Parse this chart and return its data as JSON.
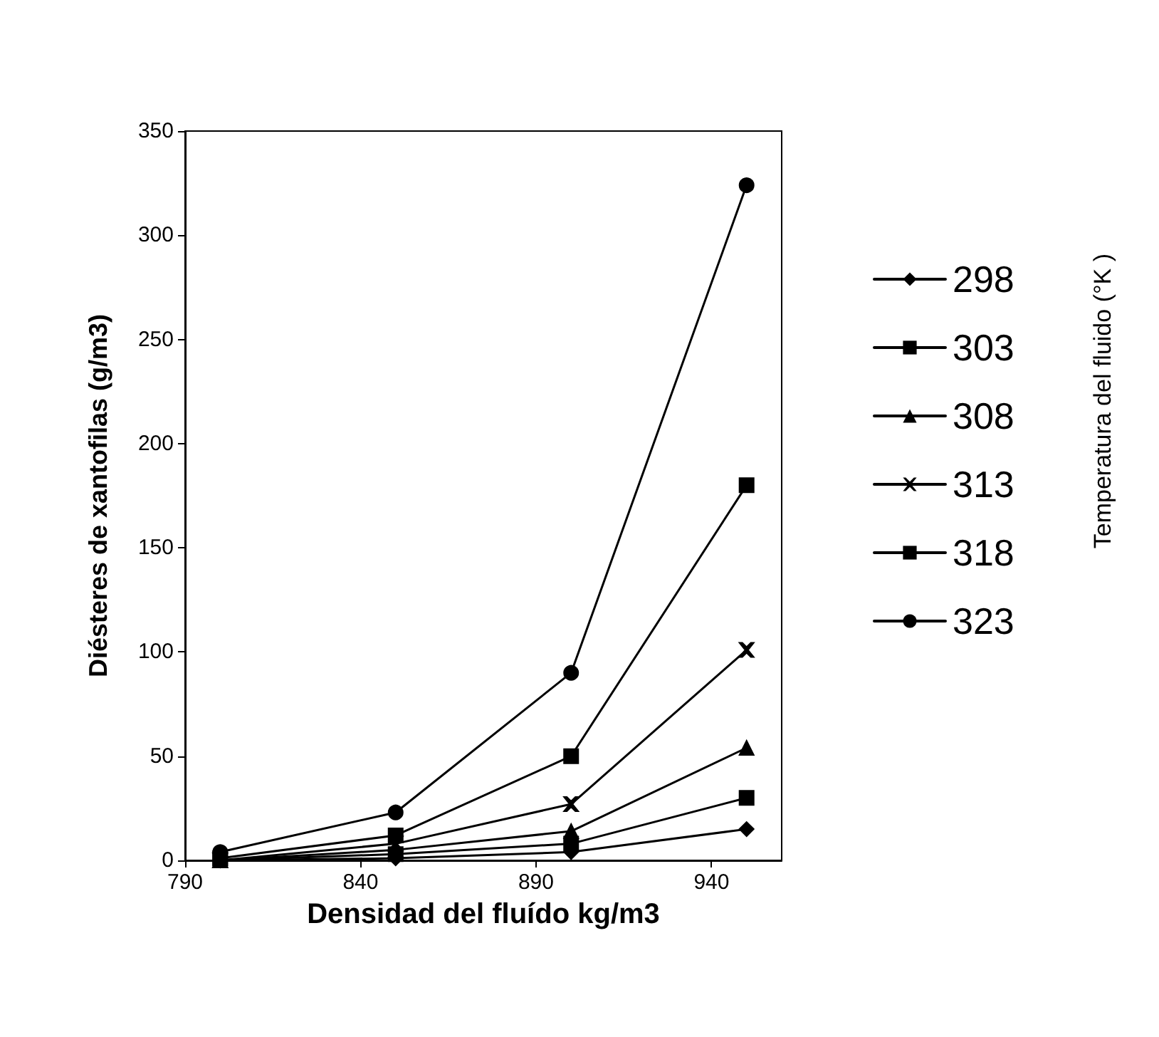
{
  "chart_data": {
    "type": "line",
    "xlabel": "Densidad del fluído kg/m3",
    "ylabel": "Diésteres de xantofilas (g/m3)",
    "legend_title": "Temperatura del fluido (°K )",
    "x": [
      800,
      850,
      900,
      950
    ],
    "series": [
      {
        "name": "298",
        "color": "#000000",
        "marker": "diamond",
        "values": [
          0,
          1,
          4,
          15
        ]
      },
      {
        "name": "303",
        "color": "#000000",
        "marker": "square",
        "values": [
          0,
          3,
          8,
          30
        ]
      },
      {
        "name": "308",
        "color": "#000000",
        "marker": "triangle",
        "values": [
          0,
          5,
          14,
          54
        ]
      },
      {
        "name": "313",
        "color": "#000000",
        "marker": "cross",
        "values": [
          0,
          8,
          27,
          101
        ]
      },
      {
        "name": "318",
        "color": "#000000",
        "marker": "square",
        "values": [
          1,
          12,
          50,
          180
        ]
      },
      {
        "name": "323",
        "color": "#000000",
        "marker": "circle",
        "values": [
          4,
          23,
          90,
          324
        ]
      }
    ],
    "xlim": [
      790,
      960
    ],
    "xticks": [
      790,
      840,
      890,
      940
    ],
    "ylim": [
      0,
      350
    ],
    "yticks": [
      0,
      50,
      100,
      150,
      200,
      250,
      300,
      350
    ],
    "grid": false,
    "legend": "right",
    "line_style": "solid"
  }
}
